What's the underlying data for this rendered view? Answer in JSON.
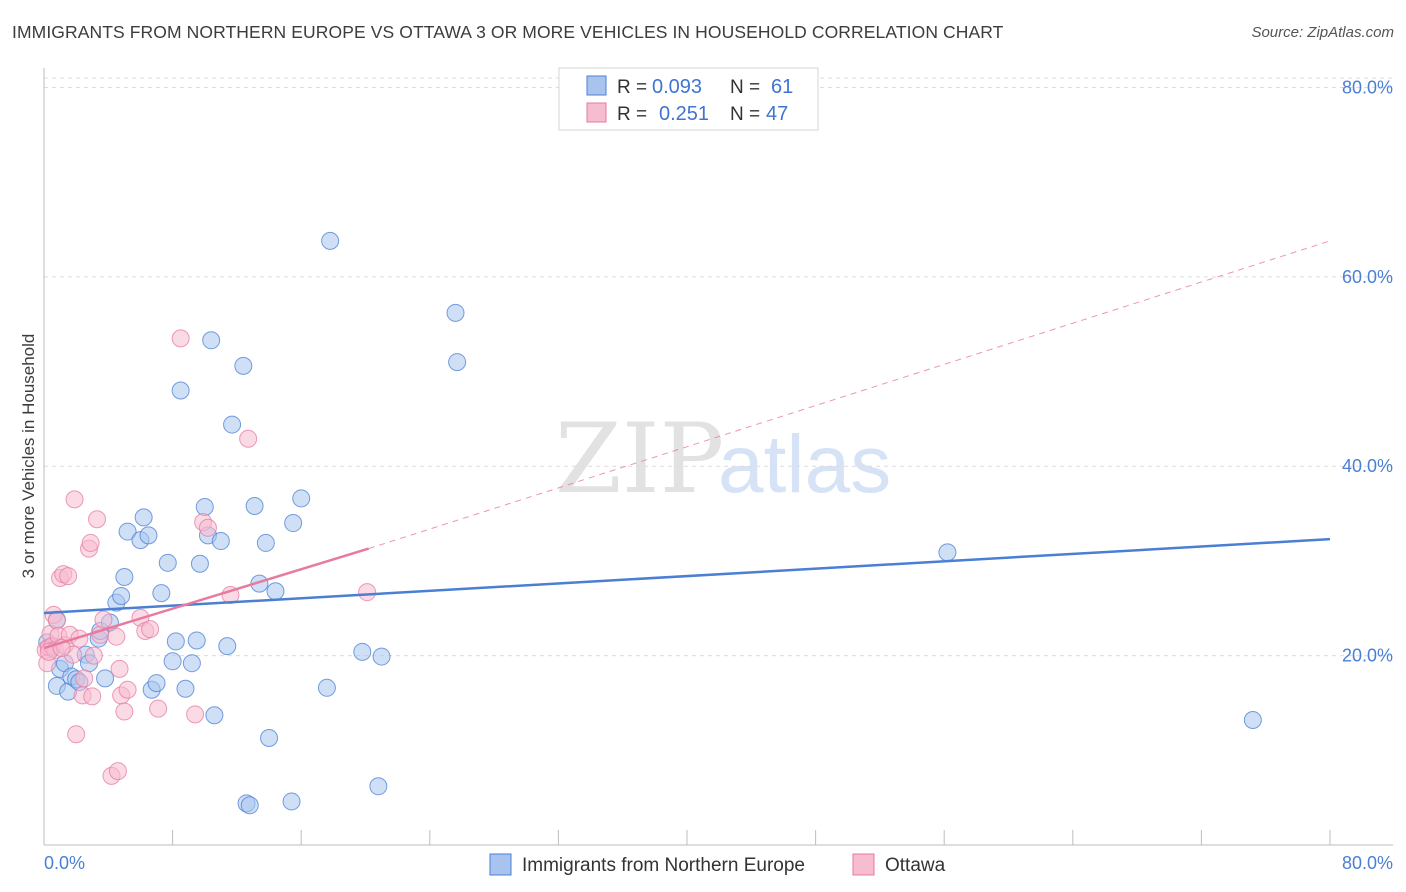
{
  "title": "IMMIGRANTS FROM NORTHERN EUROPE VS OTTAWA 3 OR MORE VEHICLES IN HOUSEHOLD CORRELATION CHART",
  "source": "Source: ZipAtlas.com",
  "colors": {
    "blue": "#4a7fd4",
    "blue_fill": "#a8c4ee",
    "pink": "#e87aa0",
    "pink_fill": "#f6bcd0",
    "grid": "#d9d9d9"
  },
  "chart_data": {
    "type": "scatter",
    "title": "IMMIGRANTS FROM NORTHERN EUROPE VS OTTAWA 3 OR MORE VEHICLES IN HOUSEHOLD CORRELATION CHART",
    "xlabel": "",
    "ylabel": "3 or more Vehicles in Household",
    "xlim": [
      0,
      80
    ],
    "ylim": [
      0,
      81
    ],
    "x_tick_labels": [
      "0.0%",
      "80.0%"
    ],
    "y_ticks": [
      20,
      40,
      60,
      80
    ],
    "y_tick_labels": [
      "20.0%",
      "40.0%",
      "60.0%",
      "80.0%"
    ],
    "watermark": {
      "part1": "ZIP",
      "part2": "atlas"
    },
    "legend": {
      "rows": [
        {
          "r_label": "R =",
          "r_value": "0.093",
          "n_label": "N =",
          "n_value": "61"
        },
        {
          "r_label": "R =",
          "r_value": "0.251",
          "n_label": "N =",
          "n_value": "47"
        }
      ]
    },
    "series": [
      {
        "name": "Immigrants from Northern Europe",
        "color": "#4a7fd4",
        "trend": {
          "x": [
            0,
            80
          ],
          "y": [
            24.5,
            32.3
          ],
          "style": "solid"
        },
        "points": [
          [
            0.2,
            21.4
          ],
          [
            0.5,
            20.8
          ],
          [
            0.8,
            16.8
          ],
          [
            1.0,
            18.6
          ],
          [
            1.3,
            19.2
          ],
          [
            1.5,
            16.2
          ],
          [
            1.7,
            17.8
          ],
          [
            2.0,
            17.5
          ],
          [
            2.2,
            17.2
          ],
          [
            2.6,
            20.1
          ],
          [
            2.8,
            19.2
          ],
          [
            3.4,
            21.8
          ],
          [
            3.5,
            22.6
          ],
          [
            3.8,
            17.6
          ],
          [
            4.1,
            23.5
          ],
          [
            4.5,
            25.6
          ],
          [
            4.8,
            26.3
          ],
          [
            5.0,
            28.3
          ],
          [
            5.2,
            33.1
          ],
          [
            6.0,
            32.2
          ],
          [
            6.2,
            34.6
          ],
          [
            6.5,
            32.7
          ],
          [
            6.7,
            16.4
          ],
          [
            7.0,
            17.1
          ],
          [
            7.3,
            26.6
          ],
          [
            7.7,
            29.8
          ],
          [
            8.0,
            19.4
          ],
          [
            8.2,
            21.5
          ],
          [
            8.5,
            48.0
          ],
          [
            8.8,
            16.5
          ],
          [
            9.2,
            19.2
          ],
          [
            9.5,
            21.6
          ],
          [
            9.7,
            29.7
          ],
          [
            10.0,
            35.7
          ],
          [
            10.2,
            32.7
          ],
          [
            10.4,
            53.3
          ],
          [
            10.6,
            13.7
          ],
          [
            11.0,
            32.1
          ],
          [
            11.4,
            21.0
          ],
          [
            11.7,
            44.4
          ],
          [
            12.4,
            50.6
          ],
          [
            12.6,
            4.4
          ],
          [
            12.8,
            4.2
          ],
          [
            13.1,
            35.8
          ],
          [
            13.4,
            27.6
          ],
          [
            13.8,
            31.9
          ],
          [
            14.0,
            11.3
          ],
          [
            14.4,
            26.8
          ],
          [
            15.4,
            4.6
          ],
          [
            15.5,
            34.0
          ],
          [
            16.0,
            36.6
          ],
          [
            17.6,
            16.6
          ],
          [
            17.8,
            63.8
          ],
          [
            19.8,
            20.4
          ],
          [
            20.8,
            6.2
          ],
          [
            21.0,
            19.9
          ],
          [
            25.6,
            56.2
          ],
          [
            25.7,
            51.0
          ],
          [
            56.2,
            30.9
          ],
          [
            75.2,
            13.2
          ],
          [
            0.8,
            23.8
          ]
        ]
      },
      {
        "name": "Ottawa",
        "color": "#e87aa0",
        "trend": {
          "x": [
            0,
            20.2
          ],
          "y": [
            20.8,
            31.3
          ],
          "style": "solid",
          "extended": {
            "x": [
              20.2,
              80
            ],
            "y": [
              31.3,
              63.8
            ],
            "style": "dashed"
          }
        },
        "points": [
          [
            0.1,
            20.6
          ],
          [
            0.2,
            19.2
          ],
          [
            0.3,
            20.9
          ],
          [
            0.4,
            22.3
          ],
          [
            0.5,
            21.0
          ],
          [
            0.6,
            24.3
          ],
          [
            0.7,
            20.6
          ],
          [
            0.8,
            23.7
          ],
          [
            0.9,
            22.1
          ],
          [
            1.0,
            28.2
          ],
          [
            1.2,
            28.6
          ],
          [
            1.3,
            21.1
          ],
          [
            1.5,
            28.4
          ],
          [
            1.6,
            22.2
          ],
          [
            1.8,
            20.1
          ],
          [
            1.9,
            36.5
          ],
          [
            2.0,
            11.7
          ],
          [
            2.2,
            21.8
          ],
          [
            2.4,
            15.8
          ],
          [
            2.5,
            17.6
          ],
          [
            2.8,
            31.3
          ],
          [
            2.9,
            31.9
          ],
          [
            3.0,
            15.7
          ],
          [
            3.1,
            20.0
          ],
          [
            3.3,
            34.4
          ],
          [
            3.5,
            22.2
          ],
          [
            3.7,
            23.8
          ],
          [
            4.2,
            7.3
          ],
          [
            4.5,
            22.0
          ],
          [
            4.6,
            7.8
          ],
          [
            4.7,
            18.6
          ],
          [
            4.8,
            15.8
          ],
          [
            5.0,
            14.1
          ],
          [
            5.2,
            16.4
          ],
          [
            6.0,
            24.0
          ],
          [
            6.3,
            22.6
          ],
          [
            6.6,
            22.8
          ],
          [
            7.1,
            14.4
          ],
          [
            8.5,
            53.5
          ],
          [
            9.4,
            13.8
          ],
          [
            9.9,
            34.1
          ],
          [
            10.2,
            33.5
          ],
          [
            11.6,
            26.4
          ],
          [
            12.7,
            42.9
          ],
          [
            20.1,
            26.7
          ],
          [
            0.3,
            20.4
          ],
          [
            1.1,
            20.8
          ]
        ]
      }
    ]
  }
}
